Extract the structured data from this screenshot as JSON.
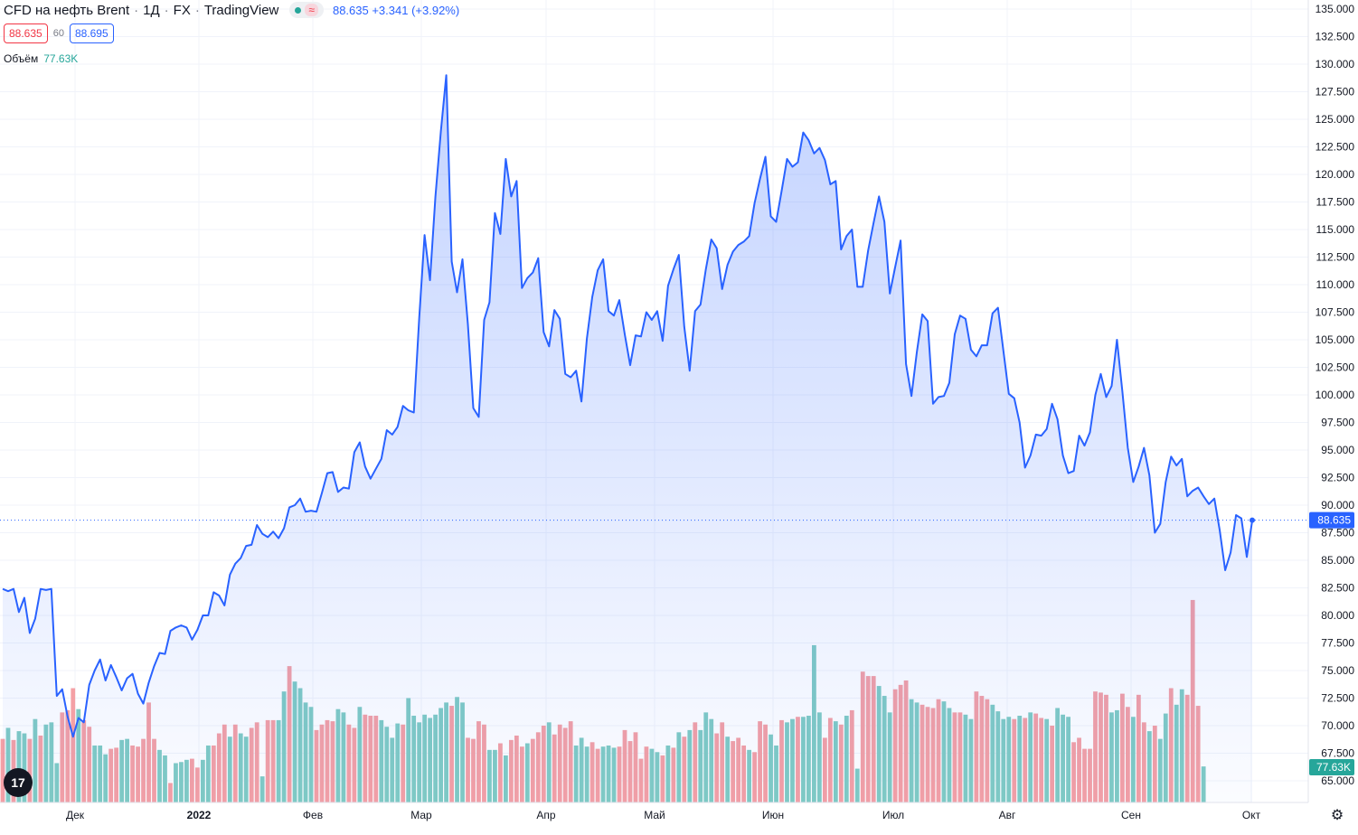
{
  "header": {
    "symbol": "CFD на нефть Brent",
    "interval": "1Д",
    "exchange": "FX",
    "source": "TradingView",
    "wave_icon": "≈",
    "change_text": "88.635 +3.341 (+3.92%)",
    "bid": "88.635",
    "spread": "60",
    "ask": "88.695"
  },
  "volume_legend": {
    "label": "Объём",
    "value": "77.63K"
  },
  "price_axis": {
    "ticks": [
      "135.000",
      "132.500",
      "130.000",
      "127.500",
      "125.000",
      "122.500",
      "120.000",
      "117.500",
      "115.000",
      "112.500",
      "110.000",
      "107.500",
      "105.000",
      "102.500",
      "100.000",
      "97.500",
      "95.000",
      "92.500",
      "90.000",
      "87.500",
      "85.000",
      "82.500",
      "80.000",
      "77.500",
      "75.000",
      "72.500",
      "70.000",
      "67.500",
      "65.000"
    ],
    "last_price_label": "88.635",
    "volume_label": "77.63K"
  },
  "time_axis": {
    "labels": [
      "Дек",
      "2022",
      "Фев",
      "Мар",
      "Апр",
      "Май",
      "Июн",
      "Июл",
      "Авг",
      "Сен",
      "Окт"
    ]
  },
  "colors": {
    "line": "#2962ff",
    "fill": "#2962ff",
    "vol_up": "#80cbc4",
    "vol_down": "#f4a0a5",
    "last_price": "#2962ff",
    "volume_badge": "#26a69a"
  },
  "logo_text": "17",
  "settings_icon": "gear-icon",
  "chart_data": {
    "type": "area",
    "title": "CFD на нефть Brent · 1Д · FX",
    "ylim": [
      63.5,
      136.2
    ],
    "last_price": 88.635,
    "price_series": [
      82.4,
      82.2,
      82.4,
      80.3,
      81.6,
      78.4,
      79.7,
      82.4,
      82.3,
      82.4,
      72.7,
      73.3,
      70.8,
      69.0,
      70.7,
      70.3,
      73.7,
      75.0,
      76.0,
      74.1,
      75.5,
      74.4,
      73.2,
      74.3,
      74.7,
      72.9,
      72.0,
      73.9,
      75.4,
      76.6,
      76.5,
      78.6,
      78.9,
      79.1,
      78.9,
      77.8,
      78.7,
      80.0,
      80.0,
      82.1,
      81.8,
      80.9,
      83.7,
      84.7,
      85.2,
      86.3,
      86.4,
      88.2,
      87.4,
      87.1,
      87.6,
      87.0,
      87.9,
      89.8,
      90.0,
      90.6,
      89.4,
      89.5,
      89.4,
      91.1,
      92.9,
      93.0,
      91.2,
      91.6,
      91.5,
      94.8,
      95.7,
      93.5,
      92.4,
      93.3,
      94.2,
      96.8,
      96.4,
      97.1,
      99.0,
      98.6,
      98.4,
      107.0,
      114.5,
      110.4,
      118.0,
      123.9,
      129.0,
      112.1,
      109.3,
      112.3,
      106.4,
      98.8,
      98.0,
      106.8,
      108.4,
      116.5,
      114.6,
      121.4,
      118.0,
      119.4,
      109.7,
      110.6,
      111.1,
      112.4,
      105.7,
      104.4,
      107.7,
      106.9,
      101.9,
      101.6,
      102.2,
      99.4,
      105.1,
      108.9,
      111.3,
      112.3,
      107.6,
      107.2,
      108.6,
      105.5,
      102.7,
      105.4,
      105.3,
      107.5,
      106.8,
      107.6,
      104.9,
      109.9,
      111.4,
      112.7,
      106.2,
      102.2,
      107.6,
      108.2,
      111.4,
      114.1,
      113.3,
      109.6,
      111.8,
      113.0,
      113.6,
      113.9,
      114.4,
      117.4,
      119.6,
      121.6,
      116.2,
      115.7,
      118.5,
      121.4,
      120.7,
      121.1,
      123.8,
      123.1,
      121.9,
      122.4,
      121.3,
      119.1,
      119.4,
      113.2,
      114.4,
      115.0,
      109.8,
      109.8,
      113.1,
      115.6,
      118.0,
      115.7,
      109.2,
      111.6,
      114.0,
      102.8,
      99.9,
      103.9,
      107.3,
      106.7,
      99.2,
      99.8,
      99.9,
      101.1,
      105.5,
      107.2,
      106.9,
      104.1,
      103.5,
      104.5,
      104.5,
      107.4,
      107.9,
      104.0,
      100.1,
      99.7,
      97.5,
      93.4,
      94.5,
      96.4,
      96.3,
      96.9,
      99.2,
      97.8,
      94.5,
      92.9,
      93.1,
      96.3,
      95.4,
      96.6,
      100.0,
      101.9,
      99.8,
      100.8,
      105.0,
      100.3,
      95.2,
      92.1,
      93.5,
      95.2,
      92.7,
      87.5,
      88.3,
      92.1,
      94.4,
      93.6,
      94.2,
      90.8,
      91.3,
      91.6,
      90.8,
      90.1,
      90.6,
      87.7,
      84.1,
      85.7,
      89.1,
      88.8,
      85.3,
      88.6
    ],
    "volume_series": [
      {
        "v": 68.8,
        "d": 1
      },
      {
        "v": 69.8,
        "d": 0
      },
      {
        "v": 68.7,
        "d": 1
      },
      {
        "v": 69.5,
        "d": 0
      },
      {
        "v": 69.3,
        "d": 0
      },
      {
        "v": 68.8,
        "d": 1
      },
      {
        "v": 70.6,
        "d": 0
      },
      {
        "v": 69.1,
        "d": 1
      },
      {
        "v": 70.1,
        "d": 0
      },
      {
        "v": 70.3,
        "d": 0
      },
      {
        "v": 66.6,
        "d": 0
      },
      {
        "v": 71.2,
        "d": 1
      },
      {
        "v": 71.4,
        "d": 1
      },
      {
        "v": 73.4,
        "d": 1
      },
      {
        "v": 71.5,
        "d": 0
      },
      {
        "v": 70.5,
        "d": 1
      },
      {
        "v": 69.9,
        "d": 1
      },
      {
        "v": 68.2,
        "d": 0
      },
      {
        "v": 68.2,
        "d": 0
      },
      {
        "v": 67.4,
        "d": 0
      },
      {
        "v": 67.9,
        "d": 1
      },
      {
        "v": 68.0,
        "d": 1
      },
      {
        "v": 68.7,
        "d": 0
      },
      {
        "v": 68.8,
        "d": 0
      },
      {
        "v": 68.2,
        "d": 1
      },
      {
        "v": 68.1,
        "d": 1
      },
      {
        "v": 68.8,
        "d": 1
      },
      {
        "v": 72.1,
        "d": 1
      },
      {
        "v": 68.8,
        "d": 1
      },
      {
        "v": 67.8,
        "d": 0
      },
      {
        "v": 67.3,
        "d": 0
      },
      {
        "v": 64.8,
        "d": 1
      },
      {
        "v": 66.6,
        "d": 0
      },
      {
        "v": 66.7,
        "d": 0
      },
      {
        "v": 66.9,
        "d": 0
      },
      {
        "v": 67.0,
        "d": 1
      },
      {
        "v": 66.2,
        "d": 1
      },
      {
        "v": 66.9,
        "d": 0
      },
      {
        "v": 68.2,
        "d": 0
      },
      {
        "v": 68.2,
        "d": 1
      },
      {
        "v": 69.3,
        "d": 1
      },
      {
        "v": 70.1,
        "d": 1
      },
      {
        "v": 69.0,
        "d": 0
      },
      {
        "v": 70.1,
        "d": 1
      },
      {
        "v": 69.3,
        "d": 0
      },
      {
        "v": 69.0,
        "d": 0
      },
      {
        "v": 69.8,
        "d": 1
      },
      {
        "v": 70.3,
        "d": 1
      },
      {
        "v": 65.4,
        "d": 0
      },
      {
        "v": 70.5,
        "d": 1
      },
      {
        "v": 70.5,
        "d": 1
      },
      {
        "v": 70.5,
        "d": 0
      },
      {
        "v": 73.1,
        "d": 0
      },
      {
        "v": 75.4,
        "d": 1
      },
      {
        "v": 74.0,
        "d": 0
      },
      {
        "v": 73.4,
        "d": 0
      },
      {
        "v": 72.1,
        "d": 0
      },
      {
        "v": 71.7,
        "d": 0
      },
      {
        "v": 69.6,
        "d": 1
      },
      {
        "v": 70.1,
        "d": 1
      },
      {
        "v": 70.5,
        "d": 1
      },
      {
        "v": 70.4,
        "d": 1
      },
      {
        "v": 71.5,
        "d": 0
      },
      {
        "v": 71.2,
        "d": 0
      },
      {
        "v": 70.1,
        "d": 1
      },
      {
        "v": 69.8,
        "d": 1
      },
      {
        "v": 71.7,
        "d": 0
      },
      {
        "v": 71.0,
        "d": 1
      },
      {
        "v": 70.9,
        "d": 1
      },
      {
        "v": 70.9,
        "d": 1
      },
      {
        "v": 70.5,
        "d": 0
      },
      {
        "v": 69.9,
        "d": 0
      },
      {
        "v": 68.9,
        "d": 0
      },
      {
        "v": 70.2,
        "d": 0
      },
      {
        "v": 70.1,
        "d": 1
      },
      {
        "v": 72.5,
        "d": 0
      },
      {
        "v": 70.9,
        "d": 0
      },
      {
        "v": 70.3,
        "d": 0
      },
      {
        "v": 71.0,
        "d": 0
      },
      {
        "v": 70.7,
        "d": 0
      },
      {
        "v": 71.0,
        "d": 0
      },
      {
        "v": 71.6,
        "d": 0
      },
      {
        "v": 72.1,
        "d": 0
      },
      {
        "v": 71.8,
        "d": 1
      },
      {
        "v": 72.6,
        "d": 0
      },
      {
        "v": 72.1,
        "d": 0
      },
      {
        "v": 68.9,
        "d": 1
      },
      {
        "v": 68.8,
        "d": 1
      },
      {
        "v": 70.4,
        "d": 1
      },
      {
        "v": 70.1,
        "d": 1
      },
      {
        "v": 67.8,
        "d": 0
      },
      {
        "v": 67.8,
        "d": 0
      },
      {
        "v": 68.4,
        "d": 1
      },
      {
        "v": 67.3,
        "d": 0
      },
      {
        "v": 68.7,
        "d": 1
      },
      {
        "v": 69.1,
        "d": 1
      },
      {
        "v": 68.1,
        "d": 1
      },
      {
        "v": 68.4,
        "d": 0
      },
      {
        "v": 68.8,
        "d": 1
      },
      {
        "v": 69.4,
        "d": 1
      },
      {
        "v": 70.0,
        "d": 1
      },
      {
        "v": 70.3,
        "d": 0
      },
      {
        "v": 69.2,
        "d": 1
      },
      {
        "v": 70.1,
        "d": 1
      },
      {
        "v": 69.8,
        "d": 1
      },
      {
        "v": 70.4,
        "d": 1
      },
      {
        "v": 68.2,
        "d": 0
      },
      {
        "v": 68.9,
        "d": 0
      },
      {
        "v": 68.1,
        "d": 0
      },
      {
        "v": 68.5,
        "d": 1
      },
      {
        "v": 67.9,
        "d": 1
      },
      {
        "v": 68.1,
        "d": 0
      },
      {
        "v": 68.2,
        "d": 0
      },
      {
        "v": 68.0,
        "d": 0
      },
      {
        "v": 68.1,
        "d": 1
      },
      {
        "v": 69.6,
        "d": 1
      },
      {
        "v": 68.6,
        "d": 1
      },
      {
        "v": 69.4,
        "d": 1
      },
      {
        "v": 67.0,
        "d": 1
      },
      {
        "v": 68.1,
        "d": 1
      },
      {
        "v": 67.9,
        "d": 0
      },
      {
        "v": 67.6,
        "d": 0
      },
      {
        "v": 67.3,
        "d": 1
      },
      {
        "v": 68.2,
        "d": 0
      },
      {
        "v": 68.0,
        "d": 1
      },
      {
        "v": 69.4,
        "d": 0
      },
      {
        "v": 69.0,
        "d": 1
      },
      {
        "v": 69.6,
        "d": 0
      },
      {
        "v": 70.3,
        "d": 1
      },
      {
        "v": 69.6,
        "d": 0
      },
      {
        "v": 71.2,
        "d": 0
      },
      {
        "v": 70.6,
        "d": 0
      },
      {
        "v": 69.3,
        "d": 1
      },
      {
        "v": 70.3,
        "d": 1
      },
      {
        "v": 69.0,
        "d": 0
      },
      {
        "v": 68.6,
        "d": 1
      },
      {
        "v": 68.9,
        "d": 1
      },
      {
        "v": 68.2,
        "d": 1
      },
      {
        "v": 67.8,
        "d": 0
      },
      {
        "v": 67.6,
        "d": 1
      },
      {
        "v": 70.4,
        "d": 1
      },
      {
        "v": 70.1,
        "d": 1
      },
      {
        "v": 69.2,
        "d": 0
      },
      {
        "v": 68.2,
        "d": 0
      },
      {
        "v": 70.5,
        "d": 1
      },
      {
        "v": 70.3,
        "d": 0
      },
      {
        "v": 70.6,
        "d": 0
      },
      {
        "v": 70.8,
        "d": 1
      },
      {
        "v": 70.8,
        "d": 0
      },
      {
        "v": 70.9,
        "d": 0
      },
      {
        "v": 77.3,
        "d": 0
      },
      {
        "v": 71.2,
        "d": 0
      },
      {
        "v": 68.9,
        "d": 1
      },
      {
        "v": 70.7,
        "d": 1
      },
      {
        "v": 70.4,
        "d": 0
      },
      {
        "v": 70.1,
        "d": 1
      },
      {
        "v": 70.9,
        "d": 0
      },
      {
        "v": 71.4,
        "d": 1
      },
      {
        "v": 66.1,
        "d": 0
      },
      {
        "v": 74.9,
        "d": 1
      },
      {
        "v": 74.5,
        "d": 1
      },
      {
        "v": 74.5,
        "d": 1
      },
      {
        "v": 73.6,
        "d": 0
      },
      {
        "v": 72.7,
        "d": 0
      },
      {
        "v": 71.2,
        "d": 0
      },
      {
        "v": 73.3,
        "d": 1
      },
      {
        "v": 73.7,
        "d": 1
      },
      {
        "v": 74.1,
        "d": 1
      },
      {
        "v": 72.4,
        "d": 0
      },
      {
        "v": 72.1,
        "d": 0
      },
      {
        "v": 71.9,
        "d": 1
      },
      {
        "v": 71.7,
        "d": 1
      },
      {
        "v": 71.6,
        "d": 1
      },
      {
        "v": 72.4,
        "d": 1
      },
      {
        "v": 72.2,
        "d": 0
      },
      {
        "v": 71.6,
        "d": 0
      },
      {
        "v": 71.2,
        "d": 1
      },
      {
        "v": 71.2,
        "d": 1
      },
      {
        "v": 71.0,
        "d": 0
      },
      {
        "v": 70.6,
        "d": 0
      },
      {
        "v": 73.1,
        "d": 1
      },
      {
        "v": 72.7,
        "d": 1
      },
      {
        "v": 72.4,
        "d": 1
      },
      {
        "v": 71.9,
        "d": 0
      },
      {
        "v": 71.3,
        "d": 0
      },
      {
        "v": 70.6,
        "d": 0
      },
      {
        "v": 70.8,
        "d": 0
      },
      {
        "v": 70.6,
        "d": 1
      },
      {
        "v": 70.9,
        "d": 0
      },
      {
        "v": 70.7,
        "d": 1
      },
      {
        "v": 71.2,
        "d": 0
      },
      {
        "v": 71.1,
        "d": 1
      },
      {
        "v": 70.7,
        "d": 1
      },
      {
        "v": 70.6,
        "d": 0
      },
      {
        "v": 70.0,
        "d": 1
      },
      {
        "v": 71.6,
        "d": 0
      },
      {
        "v": 71.0,
        "d": 0
      },
      {
        "v": 70.8,
        "d": 0
      },
      {
        "v": 68.5,
        "d": 1
      },
      {
        "v": 68.9,
        "d": 1
      },
      {
        "v": 67.9,
        "d": 1
      },
      {
        "v": 67.9,
        "d": 1
      },
      {
        "v": 73.1,
        "d": 1
      },
      {
        "v": 73.0,
        "d": 1
      },
      {
        "v": 72.8,
        "d": 1
      },
      {
        "v": 71.2,
        "d": 0
      },
      {
        "v": 71.4,
        "d": 0
      },
      {
        "v": 72.9,
        "d": 1
      },
      {
        "v": 71.7,
        "d": 1
      },
      {
        "v": 70.8,
        "d": 0
      },
      {
        "v": 72.8,
        "d": 1
      },
      {
        "v": 70.3,
        "d": 1
      },
      {
        "v": 69.5,
        "d": 0
      },
      {
        "v": 70.0,
        "d": 1
      },
      {
        "v": 68.8,
        "d": 0
      },
      {
        "v": 71.1,
        "d": 0
      },
      {
        "v": 73.4,
        "d": 1
      },
      {
        "v": 71.9,
        "d": 0
      },
      {
        "v": 73.3,
        "d": 0
      },
      {
        "v": 72.8,
        "d": 1
      },
      {
        "v": 81.4,
        "d": 1
      },
      {
        "v": 71.8,
        "d": 1
      },
      {
        "v": 66.3,
        "d": 0
      }
    ]
  }
}
